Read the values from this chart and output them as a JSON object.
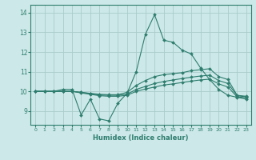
{
  "x": [
    0,
    1,
    2,
    3,
    4,
    5,
    6,
    7,
    8,
    9,
    10,
    11,
    12,
    13,
    14,
    15,
    16,
    17,
    18,
    19,
    20,
    21,
    22,
    23
  ],
  "line1": [
    10.0,
    10.0,
    10.0,
    10.1,
    10.1,
    8.8,
    9.6,
    8.6,
    8.5,
    9.4,
    9.9,
    11.0,
    12.9,
    13.9,
    12.6,
    12.5,
    12.1,
    11.9,
    11.2,
    10.6,
    10.1,
    9.8,
    9.7,
    9.6
  ],
  "line2": [
    10.0,
    10.0,
    10.0,
    10.0,
    10.0,
    9.95,
    9.9,
    9.85,
    9.83,
    9.83,
    9.95,
    10.3,
    10.55,
    10.75,
    10.85,
    10.9,
    10.95,
    11.05,
    11.1,
    11.15,
    10.75,
    10.6,
    9.8,
    9.75
  ],
  "line3": [
    10.0,
    10.0,
    10.0,
    10.0,
    10.0,
    9.95,
    9.88,
    9.82,
    9.8,
    9.8,
    9.85,
    10.1,
    10.25,
    10.4,
    10.5,
    10.58,
    10.65,
    10.72,
    10.78,
    10.82,
    10.55,
    10.4,
    9.78,
    9.72
  ],
  "line4": [
    10.0,
    10.0,
    10.0,
    10.0,
    10.0,
    9.92,
    9.85,
    9.78,
    9.75,
    9.75,
    9.8,
    10.0,
    10.12,
    10.22,
    10.32,
    10.38,
    10.45,
    10.52,
    10.58,
    10.62,
    10.38,
    10.22,
    9.72,
    9.68
  ],
  "color": "#2e7d6e",
  "bg_color": "#cce8e8",
  "grid_color": "#aacccc",
  "xlabel": "Humidex (Indice chaleur)",
  "ylim": [
    8.3,
    14.4
  ],
  "xlim": [
    -0.5,
    23.5
  ],
  "yticks": [
    9,
    10,
    11,
    12,
    13,
    14
  ],
  "xticks": [
    0,
    1,
    2,
    3,
    4,
    5,
    6,
    7,
    8,
    9,
    10,
    11,
    12,
    13,
    14,
    15,
    16,
    17,
    18,
    19,
    20,
    21,
    22,
    23
  ]
}
